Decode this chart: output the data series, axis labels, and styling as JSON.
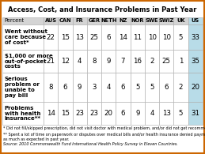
{
  "title": "Access, Cost, and Insurance Problems in Past Year",
  "columns": [
    "AUS",
    "CAN",
    "FR",
    "GER",
    "NETH",
    "NZ",
    "NOR",
    "SWE",
    "SWIZ",
    "UK",
    "US"
  ],
  "rows": [
    {
      "label": "Went without\ncare because\nof cost*",
      "values": [
        22,
        15,
        13,
        25,
        6,
        14,
        11,
        10,
        10,
        5,
        33
      ]
    },
    {
      "label": "$1,000 or more\nout-of-pocket\ncosts",
      "values": [
        21,
        12,
        4,
        8,
        9,
        7,
        16,
        2,
        25,
        1,
        35
      ]
    },
    {
      "label": "Serious\nproblem or\nunable to\npay bill",
      "values": [
        8,
        6,
        9,
        3,
        4,
        6,
        5,
        5,
        6,
        2,
        20
      ]
    },
    {
      "label": "Problems\nwith health\ninsurance**",
      "values": [
        14,
        15,
        23,
        23,
        20,
        6,
        9,
        4,
        13,
        5,
        31
      ]
    }
  ],
  "percent_label": "Percent",
  "footnote1": "* Did not fill/skipped prescription, did not visit doctor with medical problem, and/or did not get recommended care.",
  "footnote2": "** Spent a lot of time on paperwork or disputes over medical bills and/or health insurance denied payment or did not pay\nas much as expected in past year.",
  "source": "Source: 2010 Commonwealth Fund International Health Policy Survey in Eleven Countries.",
  "title_bg": "#ffffff",
  "header_bg": "#d4d4d4",
  "us_col_bg": "#b8dce8",
  "white_bg": "#ffffff",
  "border_color": "#aaaaaa",
  "outer_border": "#cc6600",
  "title_fontsize": 6.0,
  "header_fontsize": 4.8,
  "label_fontsize": 5.0,
  "cell_fontsize": 6.2,
  "footnote_fontsize": 3.5,
  "source_fontsize": 3.5
}
